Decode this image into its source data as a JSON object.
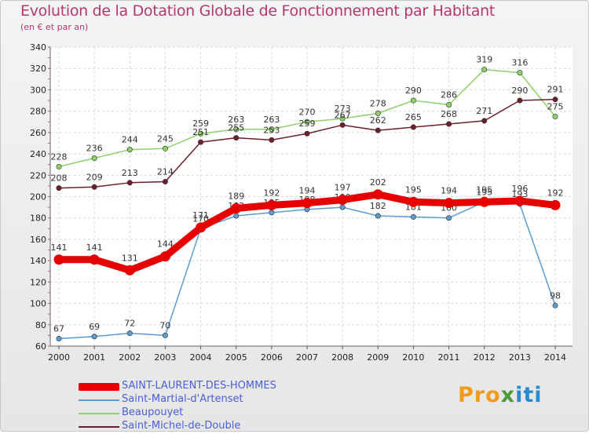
{
  "title": "Evolution de la Dotation Globale de Fonctionnement par Habitant",
  "subtitle": "(en € et par an)",
  "logo": {
    "parts": [
      "Pro",
      "x",
      "iti"
    ],
    "colors": [
      "#f29a1e",
      "#4a9a3a",
      "#2a8ad0"
    ]
  },
  "chart_data": {
    "type": "line",
    "title": "Evolution de la Dotation Globale de Fonctionnement par Habitant",
    "subtitle": "(en € et par an)",
    "xlabel": "",
    "ylabel": "",
    "ylim": [
      60,
      340
    ],
    "yticks": [
      "60",
      "80",
      "100",
      "120",
      "140",
      "160",
      "180",
      "200",
      "220",
      "240",
      "260",
      "280",
      "300",
      "320",
      "340"
    ],
    "categories": [
      "2000",
      "2001",
      "2002",
      "2003",
      "2004",
      "2005",
      "2006",
      "2007",
      "2008",
      "2009",
      "2010",
      "2011",
      "2012",
      "2013",
      "2014"
    ],
    "grid": true,
    "legend_position": "bottom-left",
    "series": [
      {
        "name": "Beaupouyet",
        "color": "#8ed16a",
        "values": [
          228,
          236,
          244,
          245,
          259,
          263,
          263,
          270,
          273,
          278,
          290,
          286,
          319,
          316,
          275
        ]
      },
      {
        "name": "Saint-Michel-de-Double",
        "color": "#6b1f2a",
        "values": [
          208,
          209,
          213,
          214,
          251,
          255,
          253,
          259,
          267,
          262,
          265,
          268,
          271,
          290,
          291
        ]
      },
      {
        "name": "Saint-Martial-d'Artenset",
        "color": "#5b9bd0",
        "values": [
          67,
          69,
          72,
          70,
          170,
          182,
          185,
          188,
          190,
          182,
          181,
          180,
          195,
          193,
          98
        ]
      },
      {
        "name": "SAINT-LAURENT-DES-HOMMES",
        "color": "#e60000",
        "values": [
          141,
          141,
          131,
          144,
          171,
          189,
          192,
          194,
          197,
          202,
          195,
          194,
          195,
          196,
          192
        ]
      }
    ]
  },
  "legend": [
    {
      "label": "SAINT-LAURENT-DES-HOMMES",
      "color": "#e60000",
      "thick": true
    },
    {
      "label": "Saint-Martial-d'Artenset",
      "color": "#5b9bd0",
      "thick": false
    },
    {
      "label": "Beaupouyet",
      "color": "#8ed16a",
      "thick": false
    },
    {
      "label": "Saint-Michel-de-Double",
      "color": "#6b1f2a",
      "thick": false
    }
  ]
}
